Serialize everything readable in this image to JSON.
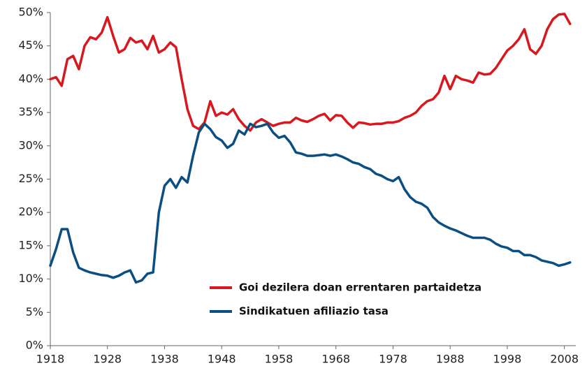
{
  "chart_data": {
    "type": "line",
    "x": [
      1918,
      1919,
      1920,
      1921,
      1922,
      1923,
      1924,
      1925,
      1926,
      1927,
      1928,
      1929,
      1930,
      1931,
      1932,
      1933,
      1934,
      1935,
      1936,
      1937,
      1938,
      1939,
      1940,
      1941,
      1942,
      1943,
      1944,
      1945,
      1946,
      1947,
      1948,
      1949,
      1950,
      1951,
      1952,
      1953,
      1954,
      1955,
      1956,
      1957,
      1958,
      1959,
      1960,
      1961,
      1962,
      1963,
      1964,
      1965,
      1966,
      1967,
      1968,
      1969,
      1970,
      1971,
      1972,
      1973,
      1974,
      1975,
      1976,
      1977,
      1978,
      1979,
      1980,
      1981,
      1982,
      1983,
      1984,
      1985,
      1986,
      1987,
      1988,
      1989,
      1990,
      1991,
      1992,
      1993,
      1994,
      1995,
      1996,
      1997,
      1998,
      1999,
      2000,
      2001,
      2002,
      2003,
      2004,
      2005,
      2006,
      2007,
      2008,
      2009
    ],
    "series": [
      {
        "name": "Goi dezilera doan errentaren partaidetza",
        "color": "#d7191f",
        "values": [
          40.0,
          40.3,
          39.0,
          43.0,
          43.5,
          41.5,
          45.0,
          46.3,
          46.0,
          47.0,
          49.3,
          46.5,
          44.0,
          44.5,
          46.2,
          45.5,
          45.8,
          44.5,
          46.5,
          44.0,
          44.5,
          45.5,
          44.8,
          40.0,
          35.5,
          33.0,
          32.5,
          33.5,
          36.7,
          34.5,
          35.0,
          34.7,
          35.5,
          34.0,
          33.0,
          32.3,
          33.5,
          34.0,
          33.5,
          33.0,
          33.3,
          33.5,
          33.5,
          34.2,
          33.8,
          33.6,
          34.0,
          34.5,
          34.8,
          33.8,
          34.6,
          34.5,
          33.5,
          32.7,
          33.5,
          33.4,
          33.2,
          33.3,
          33.3,
          33.5,
          33.5,
          33.7,
          34.2,
          34.5,
          35.0,
          36.0,
          36.7,
          37.0,
          38.0,
          40.5,
          38.5,
          40.5,
          40.0,
          39.8,
          39.5,
          41.0,
          40.7,
          40.8,
          41.7,
          43.0,
          44.3,
          45.0,
          46.0,
          47.5,
          44.5,
          43.8,
          45.0,
          47.5,
          49.0,
          49.7,
          49.8,
          48.3
        ]
      },
      {
        "name": "Sindikatuen afiliazio tasa",
        "color": "#0b4f82",
        "values": [
          12.0,
          14.5,
          17.5,
          17.5,
          14.0,
          11.7,
          11.3,
          11.0,
          10.8,
          10.6,
          10.5,
          10.2,
          10.5,
          11.0,
          11.3,
          9.5,
          9.8,
          10.8,
          11.0,
          20.0,
          24.0,
          25.0,
          23.7,
          25.3,
          24.5,
          28.5,
          32.0,
          33.3,
          32.5,
          31.3,
          30.8,
          29.7,
          30.3,
          32.3,
          31.7,
          33.3,
          32.8,
          33.0,
          33.3,
          32.0,
          31.2,
          31.5,
          30.5,
          29.0,
          28.8,
          28.5,
          28.5,
          28.6,
          28.7,
          28.5,
          28.7,
          28.4,
          28.0,
          27.5,
          27.3,
          26.8,
          26.5,
          25.8,
          25.5,
          25.0,
          24.7,
          25.3,
          23.5,
          22.3,
          21.6,
          21.3,
          20.7,
          19.3,
          18.5,
          18.0,
          17.6,
          17.3,
          16.9,
          16.5,
          16.2,
          16.2,
          16.2,
          15.9,
          15.3,
          14.9,
          14.7,
          14.2,
          14.2,
          13.6,
          13.6,
          13.3,
          12.8,
          12.6,
          12.4,
          12.0,
          12.2,
          12.5
        ]
      }
    ],
    "xlim": [
      1918,
      2010
    ],
    "xticks": [
      1918,
      1928,
      1938,
      1948,
      1958,
      1968,
      1978,
      1988,
      1998,
      2008
    ],
    "ylim": [
      0,
      50
    ],
    "yticks": [
      {
        "value": 0,
        "label": "0%"
      },
      {
        "value": 5,
        "label": "5%"
      },
      {
        "value": 10,
        "label": "10%"
      },
      {
        "value": 15,
        "label": "15%"
      },
      {
        "value": 20,
        "label": "20%"
      },
      {
        "value": 25,
        "label": "25%"
      },
      {
        "value": 30,
        "label": "30%"
      },
      {
        "value": 35,
        "label": "35%"
      },
      {
        "value": 40,
        "label": "40%"
      },
      {
        "value": 45,
        "label": "45%"
      },
      {
        "value": 50,
        "label": "50%"
      }
    ],
    "grid": false,
    "legend": "lower center"
  }
}
